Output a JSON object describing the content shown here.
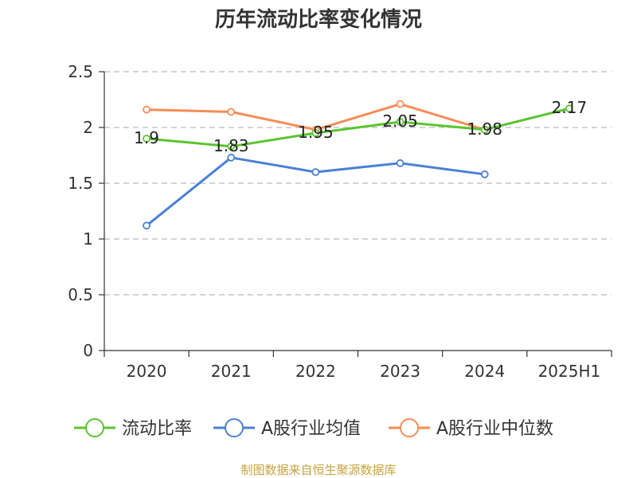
{
  "chart_data": {
    "type": "line",
    "title": "历年流动比率变化情况",
    "categories": [
      "2020",
      "2021",
      "2022",
      "2023",
      "2024",
      "2025H1"
    ],
    "ylim": [
      0,
      2.5
    ],
    "yticks": [
      "0",
      "0.5",
      "1",
      "1.5",
      "2",
      "2.5"
    ],
    "grid": true,
    "legend_position": "bottom",
    "series": [
      {
        "name": "流动比率",
        "color": "#5bc42f",
        "values": [
          1.9,
          1.83,
          1.95,
          2.05,
          1.98,
          2.17
        ],
        "labels": [
          "1.9",
          "1.83",
          "1.95",
          "2.05",
          "1.98",
          "2.17"
        ]
      },
      {
        "name": "A股行业均值",
        "color": "#4a7fd6",
        "values": [
          1.12,
          1.73,
          1.6,
          1.68,
          1.58,
          null
        ]
      },
      {
        "name": "A股行业中位数",
        "color": "#f78c56",
        "values": [
          2.16,
          2.14,
          1.98,
          2.21,
          1.98,
          null
        ]
      }
    ]
  },
  "source_text": "制图数据来自恒生聚源数据库",
  "colors": {
    "axis": "#333333",
    "grid": "#bbbbbb",
    "source": "#c8a23c"
  }
}
